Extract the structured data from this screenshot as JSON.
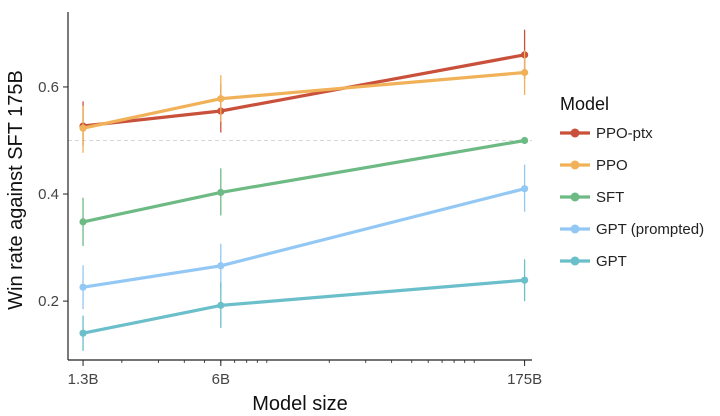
{
  "chart_data": {
    "type": "line",
    "xlabel": "Model size",
    "ylabel": "Win rate against SFT 175B",
    "x_scale": "log",
    "x": [
      "1.3B",
      "6B",
      "175B"
    ],
    "x_values": [
      1.3,
      6,
      175
    ],
    "xlim": [
      1.1,
      190
    ],
    "ylim": [
      0.09,
      0.74
    ],
    "y_ticks": [
      0.2,
      0.4,
      0.6
    ],
    "y_tick_labels": [
      "0.2",
      "0.4",
      "0.6"
    ],
    "reference_line": 0.5,
    "grid": false,
    "legend_title": "Model",
    "legend_position": "right",
    "series": [
      {
        "name": "PPO-ptx",
        "color": "#c9503a",
        "values": [
          0.527,
          0.555,
          0.66
        ],
        "error_low": [
          0.49,
          0.515,
          0.615
        ],
        "error_high": [
          0.573,
          0.605,
          0.707
        ]
      },
      {
        "name": "PPO",
        "color": "#f0b158",
        "values": [
          0.523,
          0.578,
          0.627
        ],
        "error_low": [
          0.477,
          0.535,
          0.585
        ],
        "error_high": [
          0.565,
          0.622,
          0.668
        ]
      },
      {
        "name": "SFT",
        "color": "#6dba84",
        "values": [
          0.348,
          0.403,
          0.5
        ],
        "error_low": [
          0.303,
          0.36,
          0.5
        ],
        "error_high": [
          0.393,
          0.448,
          0.5
        ]
      },
      {
        "name": "GPT (prompted)",
        "color": "#93c8f4",
        "values": [
          0.226,
          0.266,
          0.41
        ],
        "error_low": [
          0.185,
          0.225,
          0.367
        ],
        "error_high": [
          0.267,
          0.307,
          0.455
        ]
      },
      {
        "name": "GPT",
        "color": "#6abfcb",
        "values": [
          0.14,
          0.192,
          0.239
        ],
        "error_low": [
          0.107,
          0.15,
          0.2
        ],
        "error_high": [
          0.173,
          0.235,
          0.278
        ]
      }
    ]
  }
}
